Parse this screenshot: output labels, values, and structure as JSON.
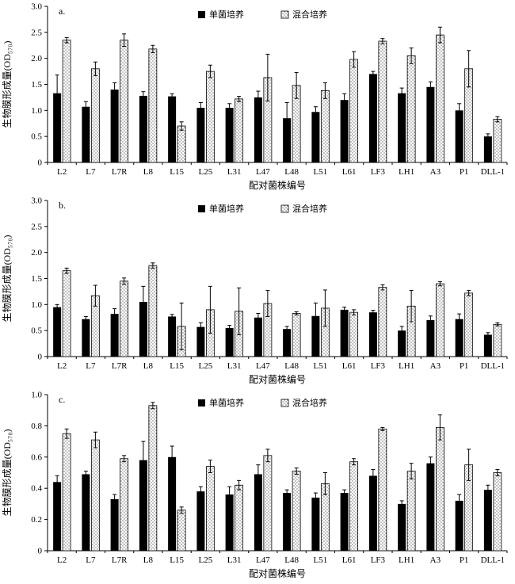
{
  "chart_data": [
    {
      "type": "bar",
      "panel_label": "a.",
      "categories": [
        "L2",
        "L7",
        "L7R",
        "L8",
        "L15",
        "L25",
        "L31",
        "L47",
        "L48",
        "L51",
        "L61",
        "LF3",
        "LH1",
        "A3",
        "P1",
        "DLL-1"
      ],
      "series": [
        {
          "name": "单菌培养",
          "values": [
            1.33,
            1.07,
            1.4,
            1.28,
            1.27,
            1.05,
            1.05,
            1.25,
            0.85,
            0.97,
            1.2,
            1.7,
            1.33,
            1.45,
            1.0,
            0.5
          ],
          "errors": [
            0.35,
            0.1,
            0.13,
            0.08,
            0.05,
            0.1,
            0.08,
            0.12,
            0.3,
            0.1,
            0.12,
            0.05,
            0.1,
            0.1,
            0.13,
            0.05
          ]
        },
        {
          "name": "混合培养",
          "values": [
            2.35,
            1.8,
            2.35,
            2.18,
            0.7,
            1.75,
            1.22,
            1.63,
            1.48,
            1.38,
            1.98,
            2.33,
            2.05,
            2.45,
            1.8,
            0.83
          ],
          "errors": [
            0.05,
            0.13,
            0.12,
            0.07,
            0.08,
            0.12,
            0.05,
            0.45,
            0.25,
            0.15,
            0.15,
            0.05,
            0.15,
            0.15,
            0.35,
            0.05
          ]
        }
      ],
      "xlabel": "配对菌株编号",
      "ylabel": "生物膜形成量(OD₅₇₀)",
      "ylim": [
        0,
        3.0
      ],
      "ytick_values": [
        0,
        0.5,
        1.0,
        1.5,
        2.0,
        2.5,
        3.0
      ],
      "ytick_labels": [
        "0",
        "0.5",
        "1.0",
        "1.5",
        "2.0",
        "2.5",
        "3.0"
      ],
      "grid": false,
      "legend_position": "top-center"
    },
    {
      "type": "bar",
      "panel_label": "b.",
      "categories": [
        "L2",
        "L7",
        "L7R",
        "L8",
        "L15",
        "L25",
        "L31",
        "L47",
        "L48",
        "L51",
        "L61",
        "LF3",
        "LH1",
        "A3",
        "P1",
        "DLL-1"
      ],
      "series": [
        {
          "name": "单菌培养",
          "values": [
            0.95,
            0.72,
            0.82,
            1.05,
            0.77,
            0.57,
            0.55,
            0.75,
            0.53,
            0.78,
            0.9,
            0.85,
            0.5,
            0.7,
            0.72,
            0.42
          ],
          "errors": [
            0.05,
            0.05,
            0.1,
            0.3,
            0.04,
            0.08,
            0.05,
            0.08,
            0.05,
            0.25,
            0.05,
            0.04,
            0.08,
            0.08,
            0.1,
            0.04
          ]
        },
        {
          "name": "混合培养",
          "values": [
            1.65,
            1.17,
            1.45,
            1.75,
            0.58,
            0.9,
            0.87,
            1.02,
            0.83,
            0.93,
            0.85,
            1.33,
            0.97,
            1.4,
            1.22,
            0.62
          ],
          "errors": [
            0.05,
            0.2,
            0.06,
            0.05,
            0.45,
            0.45,
            0.45,
            0.25,
            0.03,
            0.35,
            0.05,
            0.05,
            0.3,
            0.04,
            0.05,
            0.03
          ]
        }
      ],
      "xlabel": "配对菌株编号",
      "ylabel": "生物膜形成量(OD₅₇₀)",
      "ylim": [
        0,
        3.0
      ],
      "ytick_values": [
        0,
        0.5,
        1.0,
        1.5,
        2.0,
        2.5,
        3.0
      ],
      "ytick_labels": [
        "0",
        "0.5",
        "1.0",
        "1.5",
        "2.0",
        "2.5",
        "3.0"
      ],
      "grid": false,
      "legend_position": "top-center"
    },
    {
      "type": "bar",
      "panel_label": "c.",
      "categories": [
        "L2",
        "L7",
        "L7R",
        "L8",
        "L15",
        "L25",
        "L31",
        "L47",
        "L48",
        "L51",
        "L61",
        "LF3",
        "LH1",
        "A3",
        "P1",
        "DLL-1"
      ],
      "series": [
        {
          "name": "单菌培养",
          "values": [
            0.44,
            0.49,
            0.33,
            0.58,
            0.6,
            0.38,
            0.36,
            0.49,
            0.37,
            0.34,
            0.37,
            0.48,
            0.3,
            0.56,
            0.32,
            0.39
          ],
          "errors": [
            0.04,
            0.02,
            0.03,
            0.12,
            0.07,
            0.03,
            0.05,
            0.06,
            0.02,
            0.03,
            0.02,
            0.04,
            0.02,
            0.04,
            0.04,
            0.03
          ]
        },
        {
          "name": "混合培养",
          "values": [
            0.75,
            0.71,
            0.59,
            0.93,
            0.26,
            0.54,
            0.42,
            0.61,
            0.51,
            0.43,
            0.57,
            0.78,
            0.51,
            0.79,
            0.55,
            0.5
          ],
          "errors": [
            0.03,
            0.05,
            0.02,
            0.02,
            0.02,
            0.04,
            0.03,
            0.04,
            0.02,
            0.07,
            0.02,
            0.01,
            0.05,
            0.08,
            0.1,
            0.02
          ]
        }
      ],
      "xlabel": "配对菌株编号",
      "ylabel": "生物膜形成量(OD₅₇₀)",
      "ylim": [
        0,
        1.0
      ],
      "ytick_values": [
        0,
        0.2,
        0.4,
        0.6,
        0.8,
        1.0
      ],
      "ytick_labels": [
        "0",
        "0.2",
        "0.4",
        "0.6",
        "0.8",
        "1.0"
      ],
      "grid": false,
      "legend_position": "top-center"
    }
  ],
  "colors": {
    "single_bar": "#000000",
    "mixed_bar_dot": "#333333",
    "mixed_bar_bg": "#ffffff",
    "axis": "#000000"
  }
}
